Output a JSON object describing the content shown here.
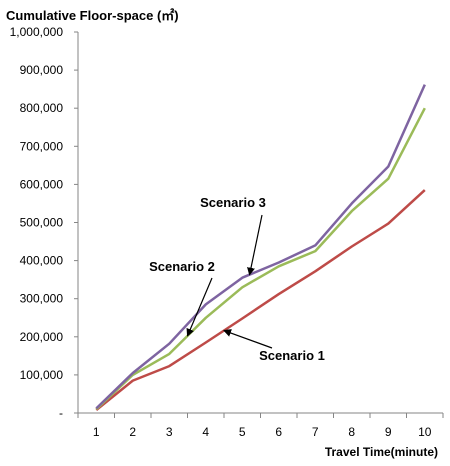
{
  "chart_data": {
    "type": "line",
    "title": "Cumulative Floor-space (㎡)",
    "xlabel": "Travel Time(minute)",
    "ylabel": "",
    "x": [
      1,
      2,
      3,
      4,
      5,
      6,
      7,
      8,
      9,
      10
    ],
    "ylim": [
      0,
      1000000
    ],
    "y_tick_labels": [
      "-",
      "100,000",
      "200,000",
      "300,000",
      "400,000",
      "500,000",
      "600,000",
      "700,000",
      "800,000",
      "900,000",
      "1,000,000"
    ],
    "grid": false,
    "legend": "none",
    "series": [
      {
        "name": "Scenario 1",
        "color": "#be4b48",
        "values": [
          8000,
          85000,
          123000,
          185000,
          248000,
          312000,
          372000,
          437000,
          497000,
          585000
        ]
      },
      {
        "name": "Scenario 2",
        "color": "#9bbb59",
        "values": [
          10000,
          100000,
          155000,
          250000,
          330000,
          385000,
          425000,
          530000,
          615000,
          800000
        ]
      },
      {
        "name": "Scenario 3",
        "color": "#7e64a1",
        "values": [
          12000,
          105000,
          182000,
          285000,
          355000,
          395000,
          440000,
          550000,
          647000,
          862000
        ]
      }
    ],
    "annotations": [
      {
        "text": "Scenario 3",
        "series": 2,
        "point_x": 5.2
      },
      {
        "text": "Scenario 2",
        "series": 1,
        "point_x": 3.5
      },
      {
        "text": "Scenario 1",
        "series": 0,
        "point_x": 4.5
      }
    ]
  }
}
